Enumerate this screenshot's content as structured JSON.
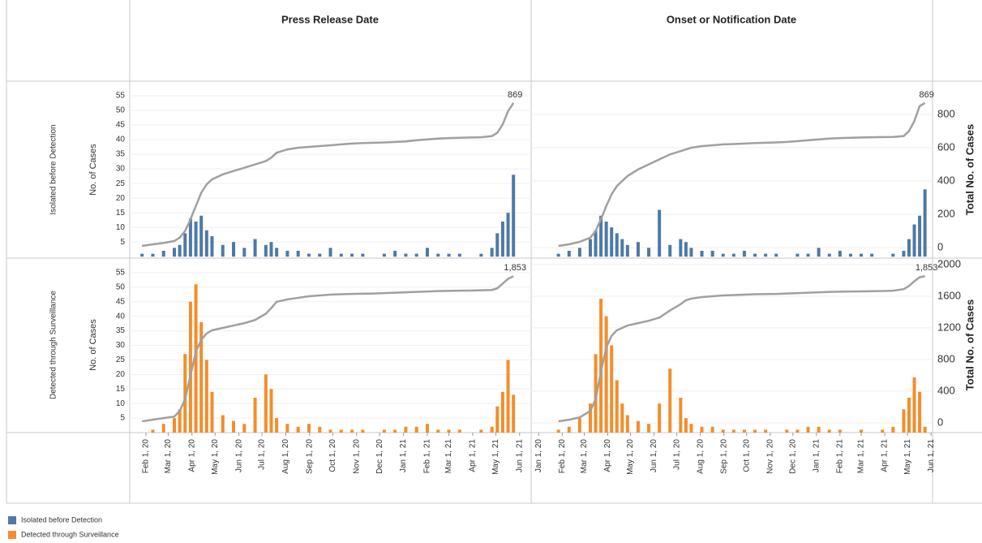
{
  "chart_data": [
    {
      "type": "bar",
      "title": "Press Release Date",
      "ylabel": "No. of Cases",
      "x": [
        "2020-01-27",
        "2020-02-10",
        "2020-02-24",
        "2020-03-09",
        "2020-03-16",
        "2020-03-23",
        "2020-03-30",
        "2020-04-06",
        "2020-04-13",
        "2020-04-20",
        "2020-04-27",
        "2020-05-11",
        "2020-05-25",
        "2020-06-08",
        "2020-06-22",
        "2020-07-06",
        "2020-07-13",
        "2020-07-20",
        "2020-08-03",
        "2020-08-17",
        "2020-08-31",
        "2020-09-14",
        "2020-09-28",
        "2020-10-12",
        "2020-10-26",
        "2020-11-09",
        "2020-11-23",
        "2020-12-07",
        "2020-12-21",
        "2021-01-04",
        "2021-01-18",
        "2021-02-01",
        "2021-02-15",
        "2021-03-01",
        "2021-03-15",
        "2021-03-29",
        "2021-04-12",
        "2021-04-26",
        "2021-05-03",
        "2021-05-10",
        "2021-05-17",
        "2021-05-24"
      ],
      "xlim": [
        "2020-01-11",
        "2021-06-16"
      ],
      "ylim": [
        -0.5,
        60
      ],
      "yticks": [
        5,
        10,
        15,
        20,
        25,
        30,
        35,
        40,
        45,
        50,
        55
      ],
      "y2lim": [
        -63,
        1000
      ],
      "grid": true,
      "series": [
        {
          "name": "Isolated before Detection",
          "color": "#4e79a7",
          "values": [
            1,
            1,
            2,
            3,
            4,
            8,
            13,
            12,
            14,
            9,
            7,
            4,
            5,
            3,
            6,
            4,
            5,
            3,
            2,
            2,
            1,
            1,
            3,
            1,
            1,
            1,
            0,
            1,
            2,
            1,
            1,
            3,
            1,
            1,
            1,
            0,
            1,
            3,
            8,
            12,
            15,
            28
          ]
        },
        {
          "axis": "y2",
          "color": "#a0a0a0",
          "values": [
            10,
            20,
            28,
            40,
            60,
            100,
            170,
            250,
            330,
            380,
            410,
            440,
            460,
            480,
            500,
            520,
            540,
            570,
            590,
            600,
            605,
            610,
            615,
            620,
            625,
            628,
            630,
            632,
            635,
            638,
            645,
            650,
            655,
            658,
            660,
            662,
            663,
            670,
            690,
            740,
            820,
            869
          ]
        }
      ]
    },
    {
      "type": "bar",
      "title": "Onset or Notification Date",
      "y2label": "Total No. of Cases",
      "x": [
        "2020-01-27",
        "2020-02-10",
        "2020-02-24",
        "2020-03-09",
        "2020-03-16",
        "2020-03-23",
        "2020-03-30",
        "2020-04-06",
        "2020-04-13",
        "2020-04-20",
        "2020-04-27",
        "2020-05-11",
        "2020-05-25",
        "2020-06-08",
        "2020-06-22",
        "2020-07-06",
        "2020-07-13",
        "2020-07-20",
        "2020-08-03",
        "2020-08-17",
        "2020-08-31",
        "2020-09-14",
        "2020-09-28",
        "2020-10-12",
        "2020-10-26",
        "2020-11-09",
        "2020-11-23",
        "2020-12-07",
        "2020-12-21",
        "2021-01-04",
        "2021-01-18",
        "2021-02-01",
        "2021-02-15",
        "2021-03-01",
        "2021-03-15",
        "2021-03-29",
        "2021-04-12",
        "2021-04-26",
        "2021-05-03",
        "2021-05-10",
        "2021-05-17",
        "2021-05-24"
      ],
      "xlim": [
        "2019-12-22",
        "2021-06-03"
      ],
      "ylim": [
        -0.5,
        60
      ],
      "y2lim": [
        -63,
        1000
      ],
      "y2ticks": [
        0,
        200,
        400,
        600,
        800
      ],
      "grid": true,
      "series": [
        {
          "name": "Isolated before Detection",
          "color": "#4e79a7",
          "values": [
            1,
            2,
            3,
            6,
            9,
            14,
            12,
            10,
            8,
            6,
            4,
            5,
            3,
            16,
            4,
            6,
            5,
            3,
            2,
            2,
            1,
            1,
            2,
            1,
            1,
            1,
            0,
            1,
            1,
            3,
            1,
            2,
            1,
            1,
            1,
            0,
            1,
            2,
            6,
            11,
            14,
            23
          ]
        },
        {
          "axis": "y2",
          "color": "#a0a0a0",
          "values": [
            10,
            20,
            35,
            60,
            100,
            170,
            250,
            320,
            370,
            400,
            430,
            470,
            500,
            530,
            560,
            580,
            590,
            600,
            610,
            615,
            620,
            622,
            625,
            628,
            630,
            632,
            635,
            640,
            645,
            650,
            655,
            658,
            660,
            662,
            663,
            664,
            665,
            670,
            700,
            760,
            850,
            869
          ]
        }
      ]
    },
    {
      "type": "bar",
      "ylabel": "No. of Cases",
      "x": [
        "2020-01-27",
        "2020-02-10",
        "2020-02-24",
        "2020-03-09",
        "2020-03-16",
        "2020-03-23",
        "2020-03-30",
        "2020-04-06",
        "2020-04-13",
        "2020-04-20",
        "2020-04-27",
        "2020-05-11",
        "2020-05-25",
        "2020-06-08",
        "2020-06-22",
        "2020-07-06",
        "2020-07-13",
        "2020-07-20",
        "2020-08-03",
        "2020-08-17",
        "2020-08-31",
        "2020-09-14",
        "2020-09-28",
        "2020-10-12",
        "2020-10-26",
        "2020-11-09",
        "2020-11-23",
        "2020-12-07",
        "2020-12-21",
        "2021-01-04",
        "2021-01-18",
        "2021-02-01",
        "2021-02-15",
        "2021-03-01",
        "2021-03-15",
        "2021-03-29",
        "2021-04-12",
        "2021-04-26",
        "2021-05-03",
        "2021-05-10",
        "2021-05-17",
        "2021-05-24"
      ],
      "xlim": [
        "2020-01-11",
        "2021-06-16"
      ],
      "xticks": [
        {
          "value": "2020-02-01",
          "label": "Feb 1, 20"
        },
        {
          "value": "2020-03-01",
          "label": "Mar 1, 20"
        },
        {
          "value": "2020-04-01",
          "label": "Apr 1, 20"
        },
        {
          "value": "2020-05-01",
          "label": "May 1, 20"
        },
        {
          "value": "2020-06-01",
          "label": "Jun 1, 20"
        },
        {
          "value": "2020-07-01",
          "label": "Jul 1, 20"
        },
        {
          "value": "2020-08-01",
          "label": "Aug 1, 20"
        },
        {
          "value": "2020-09-01",
          "label": "Sep 1, 20"
        },
        {
          "value": "2020-10-01",
          "label": "Oct 1, 20"
        },
        {
          "value": "2020-11-01",
          "label": "Nov 1, 20"
        },
        {
          "value": "2020-12-01",
          "label": "Dec 1, 20"
        },
        {
          "value": "2021-01-01",
          "label": "Jan 1, 21"
        },
        {
          "value": "2021-02-01",
          "label": "Feb 1, 21"
        },
        {
          "value": "2021-03-01",
          "label": "Mar 1, 21"
        },
        {
          "value": "2021-04-01",
          "label": "Apr 1, 21"
        },
        {
          "value": "2021-05-01",
          "label": "May 1, 21"
        },
        {
          "value": "2021-06-01",
          "label": "Jun 1, 21"
        }
      ],
      "ylim": [
        0,
        60
      ],
      "yticks": [
        5,
        10,
        15,
        20,
        25,
        30,
        35,
        40,
        45,
        50,
        55
      ],
      "y2lim": [
        -123,
        2082
      ],
      "grid": true,
      "series": [
        {
          "name": "Detected through Surveillance",
          "color": "#f28e2b",
          "values": [
            0,
            1,
            3,
            5,
            8,
            27,
            45,
            51,
            38,
            25,
            14,
            6,
            4,
            3,
            12,
            20,
            15,
            5,
            3,
            2,
            3,
            2,
            1,
            1,
            1,
            1,
            0,
            1,
            1,
            2,
            2,
            3,
            1,
            1,
            1,
            0,
            1,
            2,
            9,
            14,
            25,
            13
          ]
        },
        {
          "axis": "y2",
          "color": "#a0a0a0",
          "values": [
            20,
            40,
            60,
            80,
            150,
            300,
            600,
            900,
            1050,
            1130,
            1170,
            1200,
            1230,
            1260,
            1300,
            1380,
            1450,
            1530,
            1560,
            1580,
            1600,
            1610,
            1620,
            1625,
            1630,
            1632,
            1635,
            1640,
            1645,
            1650,
            1655,
            1660,
            1665,
            1668,
            1670,
            1672,
            1675,
            1680,
            1700,
            1760,
            1820,
            1853
          ],
          "value_labels": [
            null,
            null,
            null,
            null,
            null,
            null,
            null,
            null,
            null,
            null,
            null,
            null,
            null,
            null,
            null,
            null,
            null,
            null,
            null,
            null,
            null,
            null,
            null,
            null,
            null,
            null,
            null,
            null,
            null,
            null,
            null,
            null,
            null,
            null,
            null,
            null,
            null,
            null,
            null,
            null,
            null,
            "1,853"
          ]
        }
      ]
    },
    {
      "type": "bar",
      "y2label": "Total No. of Cases",
      "x": [
        "2020-01-27",
        "2020-02-10",
        "2020-02-24",
        "2020-03-09",
        "2020-03-16",
        "2020-03-23",
        "2020-03-30",
        "2020-04-06",
        "2020-04-13",
        "2020-04-20",
        "2020-04-27",
        "2020-05-11",
        "2020-05-25",
        "2020-06-08",
        "2020-06-22",
        "2020-07-06",
        "2020-07-13",
        "2020-07-20",
        "2020-08-03",
        "2020-08-17",
        "2020-08-31",
        "2020-09-14",
        "2020-09-28",
        "2020-10-12",
        "2020-10-26",
        "2020-11-09",
        "2020-11-23",
        "2020-12-07",
        "2020-12-21",
        "2021-01-04",
        "2021-01-18",
        "2021-02-01",
        "2021-02-15",
        "2021-03-01",
        "2021-03-15",
        "2021-03-29",
        "2021-04-12",
        "2021-04-26",
        "2021-05-03",
        "2021-05-10",
        "2021-05-17",
        "2021-05-24"
      ],
      "xlim": [
        "2019-12-22",
        "2021-06-03"
      ],
      "xticks": [
        {
          "value": "2020-01-01",
          "label": "Jan 1, 20"
        },
        {
          "value": "2020-02-01",
          "label": "Feb 1, 20"
        },
        {
          "value": "2020-03-01",
          "label": "Mar 1, 20"
        },
        {
          "value": "2020-04-01",
          "label": "Apr 1, 20"
        },
        {
          "value": "2020-05-01",
          "label": "May 1, 20"
        },
        {
          "value": "2020-06-01",
          "label": "Jun 1, 20"
        },
        {
          "value": "2020-07-01",
          "label": "Jul 1, 20"
        },
        {
          "value": "2020-08-01",
          "label": "Aug 1, 20"
        },
        {
          "value": "2020-09-01",
          "label": "Sep 1, 20"
        },
        {
          "value": "2020-10-01",
          "label": "Oct 1, 20"
        },
        {
          "value": "2020-11-01",
          "label": "Nov 1, 20"
        },
        {
          "value": "2020-12-01",
          "label": "Dec 1, 20"
        },
        {
          "value": "2021-01-01",
          "label": "Jan 1, 21"
        },
        {
          "value": "2021-02-01",
          "label": "Feb 1, 21"
        },
        {
          "value": "2021-03-01",
          "label": "Mar 1, 21"
        },
        {
          "value": "2021-04-01",
          "label": "Apr 1, 21"
        },
        {
          "value": "2021-05-01",
          "label": "May 1, 21"
        },
        {
          "value": "2021-06-01",
          "label": "Jun 1, 21"
        }
      ],
      "ylim": [
        0,
        60
      ],
      "y2lim": [
        -123,
        2082
      ],
      "y2ticks": [
        0,
        400,
        800,
        1200,
        1600,
        2000
      ],
      "grid": true,
      "series": [
        {
          "name": "Detected through Surveillance",
          "color": "#f28e2b",
          "values": [
            1,
            2,
            5,
            10,
            27,
            46,
            40,
            30,
            18,
            10,
            6,
            4,
            3,
            10,
            22,
            12,
            5,
            3,
            2,
            2,
            1,
            1,
            1,
            1,
            1,
            0,
            1,
            1,
            2,
            2,
            1,
            1,
            0,
            1,
            0,
            1,
            2,
            8,
            12,
            19,
            14,
            2
          ]
        },
        {
          "axis": "y2",
          "color": "#a0a0a0",
          "values": [
            20,
            40,
            70,
            150,
            300,
            650,
            950,
            1100,
            1170,
            1200,
            1230,
            1260,
            1290,
            1330,
            1420,
            1500,
            1550,
            1570,
            1590,
            1600,
            1610,
            1615,
            1620,
            1625,
            1628,
            1630,
            1635,
            1640,
            1645,
            1650,
            1655,
            1658,
            1660,
            1662,
            1664,
            1666,
            1670,
            1690,
            1730,
            1790,
            1840,
            1853
          ],
          "value_labels": [
            null,
            null,
            null,
            null,
            null,
            null,
            null,
            null,
            null,
            null,
            null,
            null,
            null,
            null,
            null,
            null,
            null,
            null,
            null,
            null,
            null,
            null,
            null,
            null,
            null,
            null,
            null,
            null,
            null,
            null,
            null,
            null,
            null,
            null,
            null,
            null,
            null,
            null,
            null,
            null,
            null,
            "1,853"
          ]
        }
      ]
    }
  ]
}
